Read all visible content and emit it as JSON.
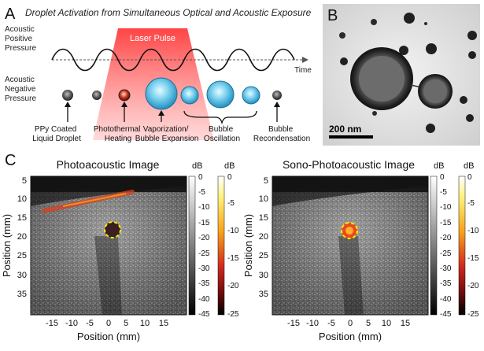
{
  "panel_a": {
    "letter": "A",
    "title": "Droplet Activation from Simultaneous Optical and Acoustic Exposure",
    "pressure_pos": [
      "Acoustic",
      "Positive",
      "Pressure"
    ],
    "pressure_neg": [
      "Acoustic",
      "Negative",
      "Pressure"
    ],
    "time_label": "Time",
    "laser_label": "Laser Pulse",
    "stage_labels": {
      "droplet": [
        "PPy Coated",
        "Liquid Droplet"
      ],
      "heating": [
        "Photothermal",
        "Heating"
      ],
      "vaporization": [
        "Vaporization/",
        "Bubble Expansion"
      ],
      "oscillation": [
        "Bubble",
        "Oscillation"
      ],
      "recondensation": [
        "Bubble",
        "Recondensation"
      ]
    },
    "colors": {
      "laser": "#e8262b",
      "bubble": "#3db8e0",
      "droplet": "#444444"
    }
  },
  "panel_b": {
    "letter": "B",
    "scalebar_label": "200 nm"
  },
  "panel_c": {
    "letter": "C",
    "left": {
      "title": "Photoacoustic Image",
      "xlabel": "Position (mm)",
      "ylabel": "Position (mm)",
      "xticks": [
        "-15",
        "-10",
        "-5",
        "0",
        "5",
        "10",
        "15"
      ],
      "yticks": [
        "5",
        "10",
        "15",
        "20",
        "25",
        "30",
        "35"
      ]
    },
    "right": {
      "title": "Sono-Photoacoustic Image",
      "xlabel": "Position (mm)",
      "ylabel": "Position (mm)",
      "xticks": [
        "-15",
        "-10",
        "-5",
        "0",
        "5",
        "10",
        "15"
      ],
      "yticks": [
        "5",
        "10",
        "15",
        "20",
        "25",
        "30",
        "35"
      ]
    },
    "colorbar_unit": "dB",
    "gray_ticks": [
      "0",
      "-5",
      "-10",
      "-15",
      "-20",
      "-25",
      "-30",
      "-35",
      "-40",
      "-45"
    ],
    "hot_ticks": [
      "0",
      "-5",
      "-10",
      "-15",
      "-20",
      "-25"
    ]
  }
}
